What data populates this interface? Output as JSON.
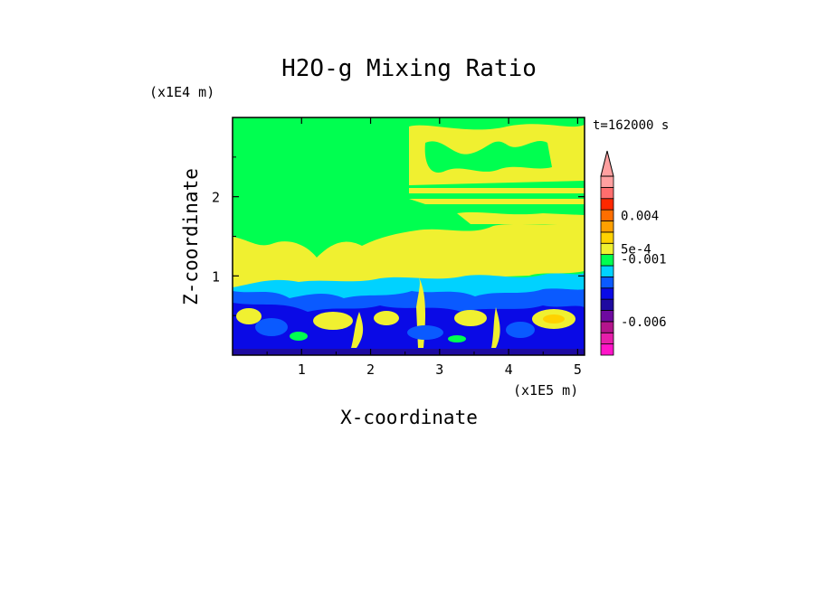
{
  "chart_data": {
    "type": "heatmap",
    "title": "H2O-g Mixing Ratio",
    "time_label": "t=162000 s",
    "xlabel": "X-coordinate",
    "ylabel": "Z-coordinate",
    "x_unit": "(x1E5 m)",
    "y_unit": "(x1E4 m)",
    "xlim": [
      0,
      5.1
    ],
    "ylim": [
      0,
      3.0
    ],
    "x_ticks": [
      "1",
      "2",
      "3",
      "4",
      "5"
    ],
    "y_ticks": [
      "1",
      "2"
    ],
    "x_tick_values": [
      1,
      2,
      3,
      4,
      5
    ],
    "y_tick_values": [
      1,
      2
    ],
    "colorbar": {
      "levels": [
        {
          "color": "#ff14c8"
        },
        {
          "color": "#e61eaa"
        },
        {
          "color": "#b4148c"
        },
        {
          "color": "#6e0aa0"
        },
        {
          "color": "#1e0aa0"
        },
        {
          "color": "#0a0ae6"
        },
        {
          "color": "#0a5aff"
        },
        {
          "color": "#00d2ff"
        },
        {
          "color": "#00ff50"
        },
        {
          "color": "#f0f030"
        },
        {
          "color": "#ffd200"
        },
        {
          "color": "#ffa000"
        },
        {
          "color": "#ff6e00"
        },
        {
          "color": "#ff2800"
        },
        {
          "color": "#ff6e6e"
        },
        {
          "color": "#ffa0a0"
        }
      ],
      "labels": [
        {
          "text": "0.004",
          "level": 12.5
        },
        {
          "text": "5e-4",
          "level": 9.5
        },
        {
          "text": "-0.001",
          "level": 8.6
        },
        {
          "text": "-0.006",
          "level": 3.0
        }
      ]
    },
    "field_regions": [
      {
        "name": "upper-background",
        "color": "#00ff50",
        "z": [
          1.4,
          3.0
        ],
        "x": [
          0,
          5.1
        ]
      },
      {
        "name": "moist-yellow-band",
        "color": "#f0f030",
        "z": [
          0.9,
          1.5
        ],
        "x": [
          0,
          5.1
        ]
      },
      {
        "name": "upper-right-yellow",
        "color": "#f0f030",
        "z": [
          1.6,
          3.0
        ],
        "x": [
          2.5,
          5.1
        ]
      },
      {
        "name": "mixed-layer-cyan",
        "color": "#00d2ff",
        "z": [
          0.6,
          0.9
        ],
        "x": [
          0,
          5.1
        ]
      },
      {
        "name": "boundary-layer-blue",
        "color": "#0a0ae6",
        "z": [
          0,
          0.8
        ],
        "x": [
          0,
          5.1
        ]
      }
    ]
  }
}
